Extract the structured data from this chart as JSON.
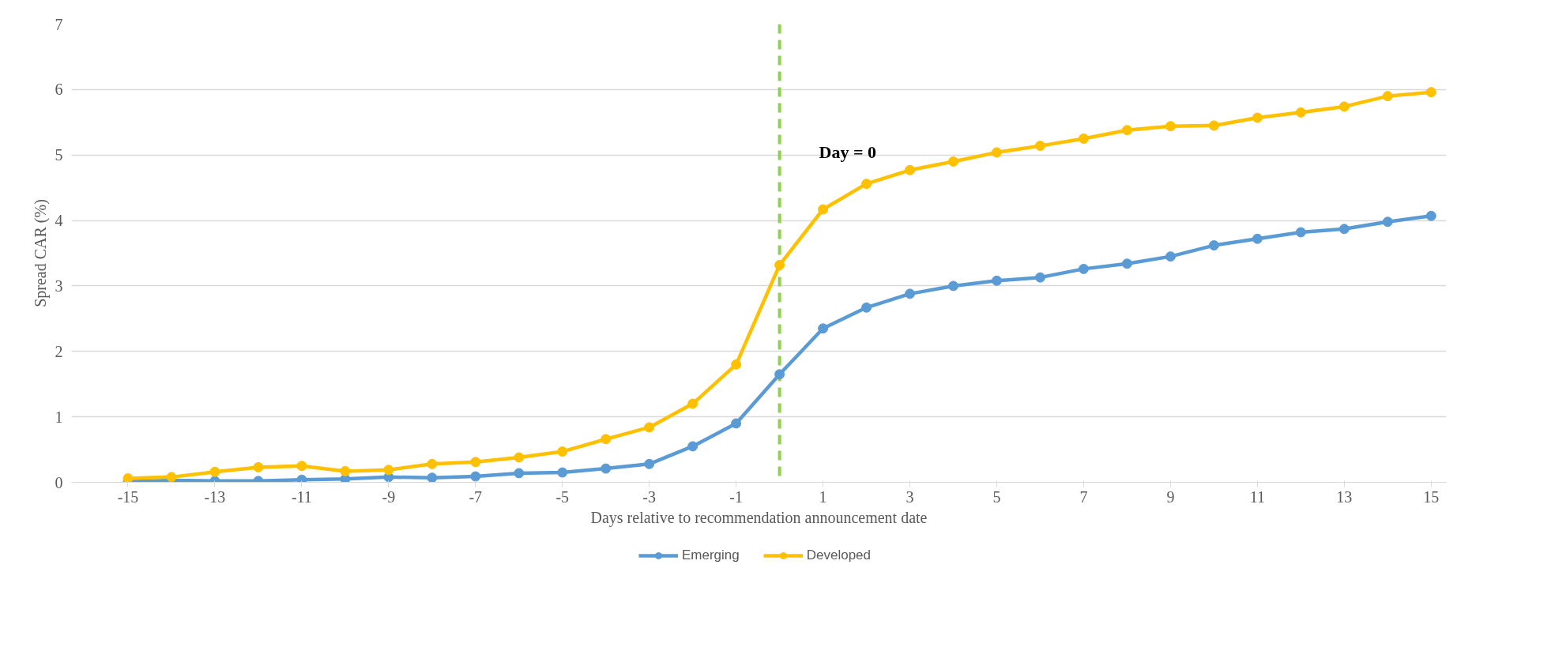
{
  "chart_data": {
    "type": "line",
    "xlabel": "Days relative to recommendation announcement date",
    "ylabel": "Spread CAR (%)",
    "x": [
      -15,
      -14,
      -13,
      -12,
      -11,
      -10,
      -9,
      -8,
      -7,
      -6,
      -5,
      -4,
      -3,
      -2,
      -1,
      0,
      1,
      2,
      3,
      4,
      5,
      6,
      7,
      8,
      9,
      10,
      11,
      12,
      13,
      14,
      15
    ],
    "series": [
      {
        "name": "Emerging",
        "color": "#5b9bd5",
        "values": [
          0.01,
          0.03,
          0.02,
          0.02,
          0.04,
          0.05,
          0.08,
          0.07,
          0.09,
          0.14,
          0.15,
          0.21,
          0.28,
          0.55,
          0.9,
          1.65,
          2.35,
          2.67,
          2.88,
          3.0,
          3.08,
          3.13,
          3.26,
          3.34,
          3.45,
          3.62,
          3.72,
          3.82,
          3.87,
          3.98,
          4.07
        ]
      },
      {
        "name": "Developed",
        "color": "#ffc000",
        "values": [
          0.06,
          0.08,
          0.16,
          0.23,
          0.25,
          0.17,
          0.19,
          0.28,
          0.31,
          0.38,
          0.47,
          0.66,
          0.84,
          1.2,
          1.8,
          3.32,
          4.17,
          4.56,
          4.77,
          4.9,
          5.04,
          5.14,
          5.25,
          5.38,
          5.44,
          5.45,
          5.57,
          5.65,
          5.74,
          5.9,
          5.96
        ]
      }
    ],
    "xlim": [
      -16.3,
      15.35
    ],
    "xticks": [
      -15,
      -13,
      -11,
      -9,
      -7,
      -5,
      -3,
      -1,
      1,
      3,
      5,
      7,
      9,
      11,
      13,
      15
    ],
    "ylim": [
      0,
      7
    ],
    "yticks": [
      0,
      1,
      2,
      3,
      4,
      5,
      6,
      7
    ],
    "grid": "y",
    "legend": "bottom",
    "marker": "circle",
    "line_style": "solid",
    "ref_lines": [
      {
        "axis": "x",
        "value": 0,
        "label": "Day = 0",
        "color": "#92d050",
        "line_style": "dashed"
      }
    ]
  }
}
